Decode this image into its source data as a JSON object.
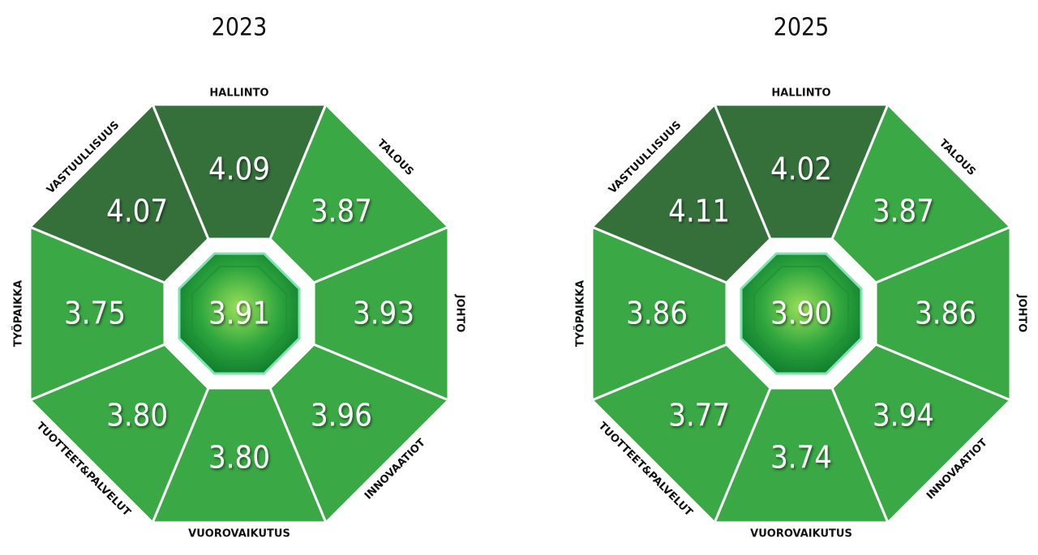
{
  "panels": [
    {
      "year": "2023",
      "center": "3.91",
      "segments": [
        {
          "label": "HALLINTO",
          "value": "4.09",
          "color": "#35703b"
        },
        {
          "label": "TALOUS",
          "value": "3.87",
          "color": "#3aa845"
        },
        {
          "label": "JOHTO",
          "value": "3.93",
          "color": "#3aa845"
        },
        {
          "label": "INNOVAATIOT",
          "value": "3.96",
          "color": "#3aa845"
        },
        {
          "label": "VUOROVAIKUTUS",
          "value": "3.80",
          "color": "#3aa845"
        },
        {
          "label": "TUOTTEET&PALVELUT",
          "value": "3.80",
          "color": "#3aa845"
        },
        {
          "label": "TYÖPAIKKA",
          "value": "3.75",
          "color": "#3aa845"
        },
        {
          "label": "VASTUULLISUUS",
          "value": "4.07",
          "color": "#35703b"
        }
      ]
    },
    {
      "year": "2025",
      "center": "3.90",
      "segments": [
        {
          "label": "HALLINTO",
          "value": "4.02",
          "color": "#35703b"
        },
        {
          "label": "TALOUS",
          "value": "3.87",
          "color": "#3aa845"
        },
        {
          "label": "JOHTO",
          "value": "3.86",
          "color": "#3aa845"
        },
        {
          "label": "INNOVAATIOT",
          "value": "3.94",
          "color": "#3aa845"
        },
        {
          "label": "VUOROVAIKUTUS",
          "value": "3.74",
          "color": "#3aa845"
        },
        {
          "label": "TUOTTEET&PALVELUT",
          "value": "3.77",
          "color": "#3aa845"
        },
        {
          "label": "TYÖPAIKKA",
          "value": "3.86",
          "color": "#3aa845"
        },
        {
          "label": "VASTUULLISUUS",
          "value": "4.11",
          "color": "#35703b"
        }
      ]
    }
  ]
}
